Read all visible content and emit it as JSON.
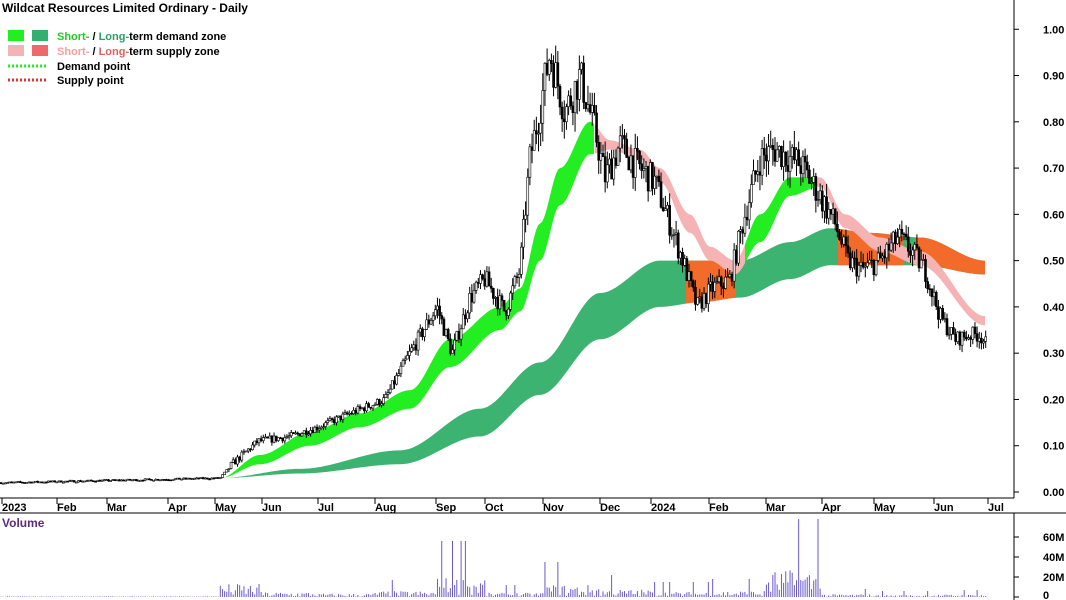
{
  "chart_data": {
    "type": "candlestick",
    "title": "Wildcat Resources Limited Ordinary - Daily",
    "legend": [
      {
        "prefix": "Short-",
        "sep": " / ",
        "mid": "Long-",
        "suffix": "term demand zone",
        "short_color": "#22ee22",
        "long_color": "#33b070"
      },
      {
        "prefix": "Short-",
        "sep": " / ",
        "mid": "Long-",
        "suffix": "term supply zone",
        "short_color": "#f6b3b3",
        "long_color": "#ee6a6a"
      },
      {
        "label": "Demand point",
        "color": "#22ee22",
        "style": "dotted"
      },
      {
        "label": "Supply point",
        "color": "#e03030",
        "style": "dotted"
      }
    ],
    "x_labels": [
      "2023",
      "Feb",
      "Mar",
      "Apr",
      "May",
      "Jun",
      "Jul",
      "Aug",
      "Sep",
      "Oct",
      "Nov",
      "Dec",
      "2024",
      "Feb",
      "Mar",
      "Apr",
      "May",
      "Jun",
      "Jul"
    ],
    "y_ticks": [
      "1.00",
      "0.90",
      "0.80",
      "0.70",
      "0.60",
      "0.50",
      "0.40",
      "0.30",
      "0.20",
      "0.10",
      "0.00"
    ],
    "ylim": [
      0,
      1.02
    ],
    "close_series": [
      {
        "date": "2023-01",
        "price": 0.02
      },
      {
        "date": "2023-02",
        "price": 0.02
      },
      {
        "date": "2023-03",
        "price": 0.02
      },
      {
        "date": "2023-04",
        "price": 0.02
      },
      {
        "date": "2023-05",
        "price": 0.03
      },
      {
        "date": "2023-06",
        "price": 0.12
      },
      {
        "date": "2023-07",
        "price": 0.14
      },
      {
        "date": "2023-08",
        "price": 0.2
      },
      {
        "date": "2023-09",
        "price": 0.35
      },
      {
        "date": "2023-10",
        "price": 0.43
      },
      {
        "date": "2023-11",
        "price": 0.85
      },
      {
        "date": "2023-12",
        "price": 0.73
      },
      {
        "date": "2024-01",
        "price": 0.6
      },
      {
        "date": "2024-02",
        "price": 0.45
      },
      {
        "date": "2024-03",
        "price": 0.72
      },
      {
        "date": "2024-04",
        "price": 0.52
      },
      {
        "date": "2024-05",
        "price": 0.54
      },
      {
        "date": "2024-06",
        "price": 0.34
      },
      {
        "date": "2024-07",
        "price": 0.32
      }
    ],
    "volume": {
      "label": "Volume",
      "y_ticks": [
        "60M",
        "40M",
        "20M",
        "0"
      ],
      "ylim": [
        0,
        75
      ],
      "monthly_peaks_m": [
        0.5,
        0.5,
        0.5,
        0.6,
        38,
        14,
        10,
        17,
        56,
        12,
        35,
        22,
        15,
        18,
        78,
        8,
        6,
        7,
        5
      ]
    }
  }
}
